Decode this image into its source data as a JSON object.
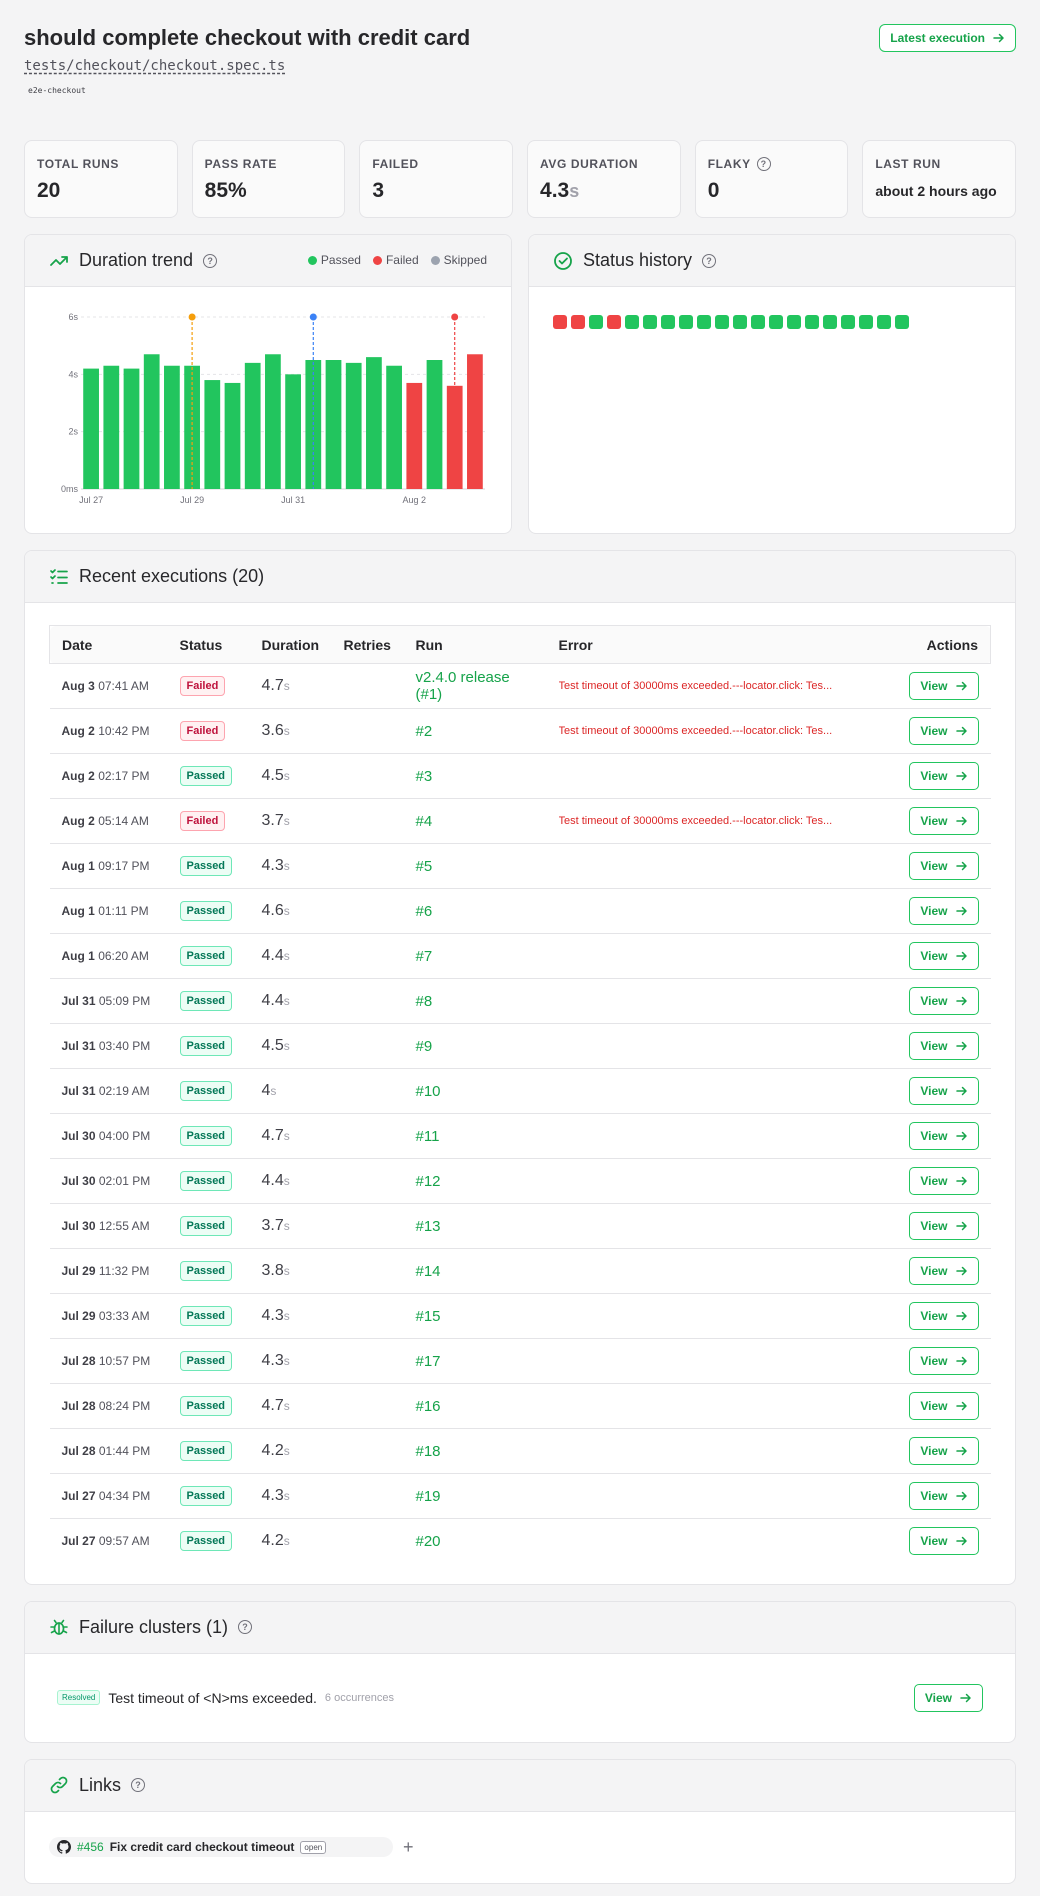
{
  "header": {
    "title": "should complete checkout with credit card",
    "path": "tests/checkout/checkout.spec.ts",
    "tag": "e2e-checkout",
    "latest_btn": "Latest execution"
  },
  "stats": {
    "total_label": "TOTAL RUNS",
    "total_value": "20",
    "pass_label": "PASS RATE",
    "pass_value": "85%",
    "failed_label": "FAILED",
    "failed_value": "3",
    "avg_label": "AVG DURATION",
    "avg_value": "4.3",
    "avg_unit": "s",
    "flaky_label": "FLAKY",
    "flaky_value": "0",
    "last_label": "LAST RUN",
    "last_value": "about 2 hours ago"
  },
  "duration_panel": {
    "title": "Duration trend",
    "legend": [
      "Passed",
      "Failed",
      "Skipped"
    ]
  },
  "status_panel": {
    "title": "Status history",
    "statuses": [
      "failed",
      "failed",
      "passed",
      "failed",
      "passed",
      "passed",
      "passed",
      "passed",
      "passed",
      "passed",
      "passed",
      "passed",
      "passed",
      "passed",
      "passed",
      "passed",
      "passed",
      "passed",
      "passed",
      "passed"
    ]
  },
  "chart_data": {
    "type": "bar",
    "title": "Duration trend",
    "y_ticks": [
      "0ms",
      "2s",
      "4s",
      "6s"
    ],
    "ylim": [
      0,
      6
    ],
    "x_ticks": [
      {
        "label": "Jul 27",
        "index": 0
      },
      {
        "label": "Jul 29",
        "index": 5
      },
      {
        "label": "Jul 31",
        "index": 10
      },
      {
        "label": "Aug 2",
        "index": 16
      }
    ],
    "values": [
      4.2,
      4.3,
      4.2,
      4.7,
      4.3,
      4.3,
      3.8,
      3.7,
      4.4,
      4.7,
      4.0,
      4.5,
      4.5,
      4.4,
      4.6,
      4.3,
      3.7,
      4.5,
      3.6,
      4.7
    ],
    "status": [
      "passed",
      "passed",
      "passed",
      "passed",
      "passed",
      "passed",
      "passed",
      "passed",
      "passed",
      "passed",
      "passed",
      "passed",
      "passed",
      "passed",
      "passed",
      "passed",
      "failed",
      "passed",
      "failed",
      "failed"
    ],
    "markers": [
      {
        "index": 5.5,
        "color": "#f59e0b"
      },
      {
        "index": 11.5,
        "color": "#3b82f6"
      },
      {
        "index": 18.5,
        "color": "#ef4444"
      }
    ],
    "colors": {
      "passed": "#22c55e",
      "failed": "#ef4444",
      "skipped": "#9ca3af"
    }
  },
  "executions": {
    "title": "Recent executions (20)",
    "columns": [
      "Date",
      "Status",
      "Duration",
      "Retries",
      "Run",
      "Error",
      "Actions"
    ],
    "view_label": "View",
    "rows": [
      {
        "date": "Aug 3",
        "time": "07:41 AM",
        "status": "Failed",
        "dur": "4.7",
        "unit": "s",
        "run": "v2.4.0 release (#1)",
        "error": "Test timeout of 30000ms exceeded.---locator.click: Tes..."
      },
      {
        "date": "Aug 2",
        "time": "10:42 PM",
        "status": "Failed",
        "dur": "3.6",
        "unit": "s",
        "run": "#2",
        "error": "Test timeout of 30000ms exceeded.---locator.click: Tes..."
      },
      {
        "date": "Aug 2",
        "time": "02:17 PM",
        "status": "Passed",
        "dur": "4.5",
        "unit": "s",
        "run": "#3",
        "error": ""
      },
      {
        "date": "Aug 2",
        "time": "05:14 AM",
        "status": "Failed",
        "dur": "3.7",
        "unit": "s",
        "run": "#4",
        "error": "Test timeout of 30000ms exceeded.---locator.click: Tes..."
      },
      {
        "date": "Aug 1",
        "time": "09:17 PM",
        "status": "Passed",
        "dur": "4.3",
        "unit": "s",
        "run": "#5",
        "error": ""
      },
      {
        "date": "Aug 1",
        "time": "01:11 PM",
        "status": "Passed",
        "dur": "4.6",
        "unit": "s",
        "run": "#6",
        "error": ""
      },
      {
        "date": "Aug 1",
        "time": "06:20 AM",
        "status": "Passed",
        "dur": "4.4",
        "unit": "s",
        "run": "#7",
        "error": ""
      },
      {
        "date": "Jul 31",
        "time": "05:09 PM",
        "status": "Passed",
        "dur": "4.4",
        "unit": "s",
        "run": "#8",
        "error": ""
      },
      {
        "date": "Jul 31",
        "time": "03:40 PM",
        "status": "Passed",
        "dur": "4.5",
        "unit": "s",
        "run": "#9",
        "error": ""
      },
      {
        "date": "Jul 31",
        "time": "02:19 AM",
        "status": "Passed",
        "dur": "4",
        "unit": "s",
        "run": "#10",
        "error": ""
      },
      {
        "date": "Jul 30",
        "time": "04:00 PM",
        "status": "Passed",
        "dur": "4.7",
        "unit": "s",
        "run": "#11",
        "error": ""
      },
      {
        "date": "Jul 30",
        "time": "02:01 PM",
        "status": "Passed",
        "dur": "4.4",
        "unit": "s",
        "run": "#12",
        "error": ""
      },
      {
        "date": "Jul 30",
        "time": "12:55 AM",
        "status": "Passed",
        "dur": "3.7",
        "unit": "s",
        "run": "#13",
        "error": ""
      },
      {
        "date": "Jul 29",
        "time": "11:32 PM",
        "status": "Passed",
        "dur": "3.8",
        "unit": "s",
        "run": "#14",
        "error": ""
      },
      {
        "date": "Jul 29",
        "time": "03:33 AM",
        "status": "Passed",
        "dur": "4.3",
        "unit": "s",
        "run": "#15",
        "error": ""
      },
      {
        "date": "Jul 28",
        "time": "10:57 PM",
        "status": "Passed",
        "dur": "4.3",
        "unit": "s",
        "run": "#17",
        "error": ""
      },
      {
        "date": "Jul 28",
        "time": "08:24 PM",
        "status": "Passed",
        "dur": "4.7",
        "unit": "s",
        "run": "#16",
        "error": ""
      },
      {
        "date": "Jul 28",
        "time": "01:44 PM",
        "status": "Passed",
        "dur": "4.2",
        "unit": "s",
        "run": "#18",
        "error": ""
      },
      {
        "date": "Jul 27",
        "time": "04:34 PM",
        "status": "Passed",
        "dur": "4.3",
        "unit": "s",
        "run": "#19",
        "error": ""
      },
      {
        "date": "Jul 27",
        "time": "09:57 AM",
        "status": "Passed",
        "dur": "4.2",
        "unit": "s",
        "run": "#20",
        "error": ""
      }
    ]
  },
  "clusters": {
    "title": "Failure clusters (1)",
    "badge": "Resolved",
    "message": "Test timeout of <N>ms exceeded.",
    "occurrences": "6 occurrences",
    "view_label": "View"
  },
  "links": {
    "title": "Links",
    "number": "#456",
    "link_title": "Fix credit card checkout timeout",
    "state": "open",
    "add": "+"
  }
}
